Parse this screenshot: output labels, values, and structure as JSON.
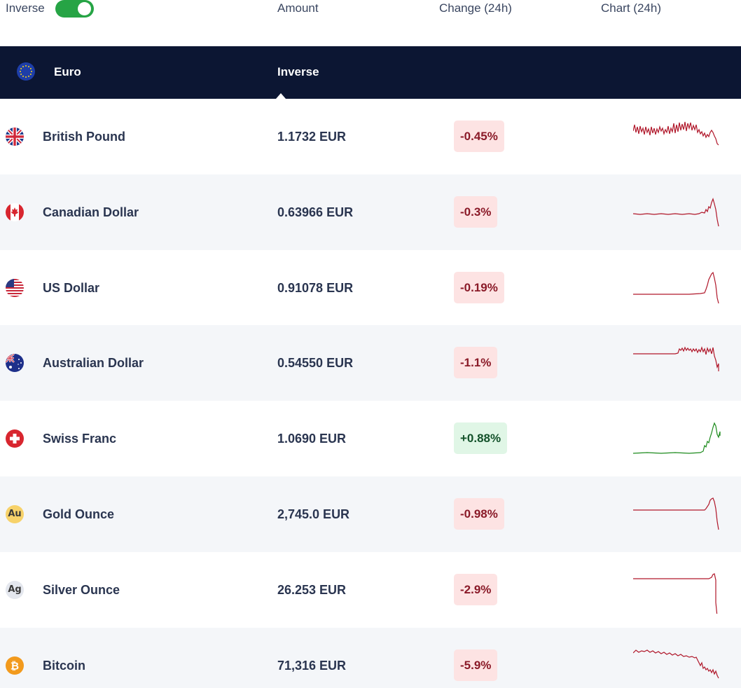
{
  "header": {
    "inverse_label": "Inverse",
    "inverse_on": true,
    "col_amount": "Amount",
    "col_change": "Change (24h)",
    "col_chart": "Chart (24h)"
  },
  "base": {
    "currency": "Euro",
    "amount_label": "Inverse",
    "flag_icon": "eu-flag-icon"
  },
  "colors": {
    "navy": "#0c1633",
    "toggle_green": "#26a445",
    "neg_text": "#8a1a28",
    "neg_bg": "#fde3e3",
    "pos_text": "#13522a",
    "pos_bg": "#e0f6e6",
    "spark_red": "#b0172a",
    "spark_green": "#1c8a1c"
  },
  "rows": [
    {
      "name": "British Pound",
      "amount": "1.1732 EUR",
      "change": "-0.45%",
      "trend": "down",
      "flag_icon": "gb-flag-icon"
    },
    {
      "name": "Canadian Dollar",
      "amount": "0.63966 EUR",
      "change": "-0.3%",
      "trend": "down",
      "flag_icon": "ca-flag-icon"
    },
    {
      "name": "US Dollar",
      "amount": "0.91078 EUR",
      "change": "-0.19%",
      "trend": "down",
      "flag_icon": "us-flag-icon"
    },
    {
      "name": "Australian Dollar",
      "amount": "0.54550 EUR",
      "change": "-1.1%",
      "trend": "down",
      "flag_icon": "au-flag-icon"
    },
    {
      "name": "Swiss Franc",
      "amount": "1.0690 EUR",
      "change": "+0.88%",
      "trend": "up",
      "flag_icon": "ch-flag-icon"
    },
    {
      "name": "Gold Ounce",
      "amount": "2,745.0 EUR",
      "change": "-0.98%",
      "trend": "down",
      "flag_icon": "gold-icon",
      "symbol": "Au"
    },
    {
      "name": "Silver Ounce",
      "amount": "26.253 EUR",
      "change": "-2.9%",
      "trend": "down",
      "flag_icon": "silver-icon",
      "symbol": "Ag"
    },
    {
      "name": "Bitcoin",
      "amount": "71,316 EUR",
      "change": "-5.9%",
      "trend": "down",
      "flag_icon": "bitcoin-icon"
    }
  ]
}
